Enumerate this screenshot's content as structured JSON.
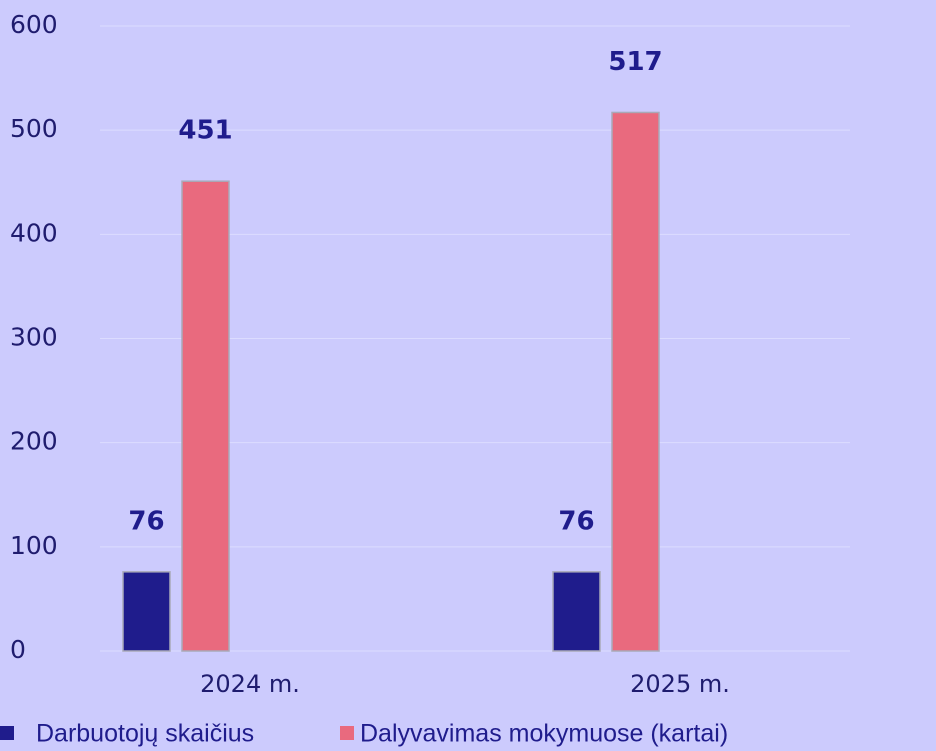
{
  "chart_data": {
    "type": "bar",
    "categories": [
      "2024 m.",
      "2025 m."
    ],
    "series": [
      {
        "name": "Darbuotojų skaičius",
        "color": "#1f1c8c",
        "values": [
          76,
          76
        ]
      },
      {
        "name": "Dalyvavimas mokymuose (kartai)",
        "color": "#e96a7e",
        "values": [
          451,
          517
        ]
      }
    ],
    "ylim": [
      0,
      600
    ],
    "yticks": [
      0,
      100,
      200,
      300,
      400,
      500,
      600
    ],
    "grid": true,
    "legend": "bottom"
  }
}
